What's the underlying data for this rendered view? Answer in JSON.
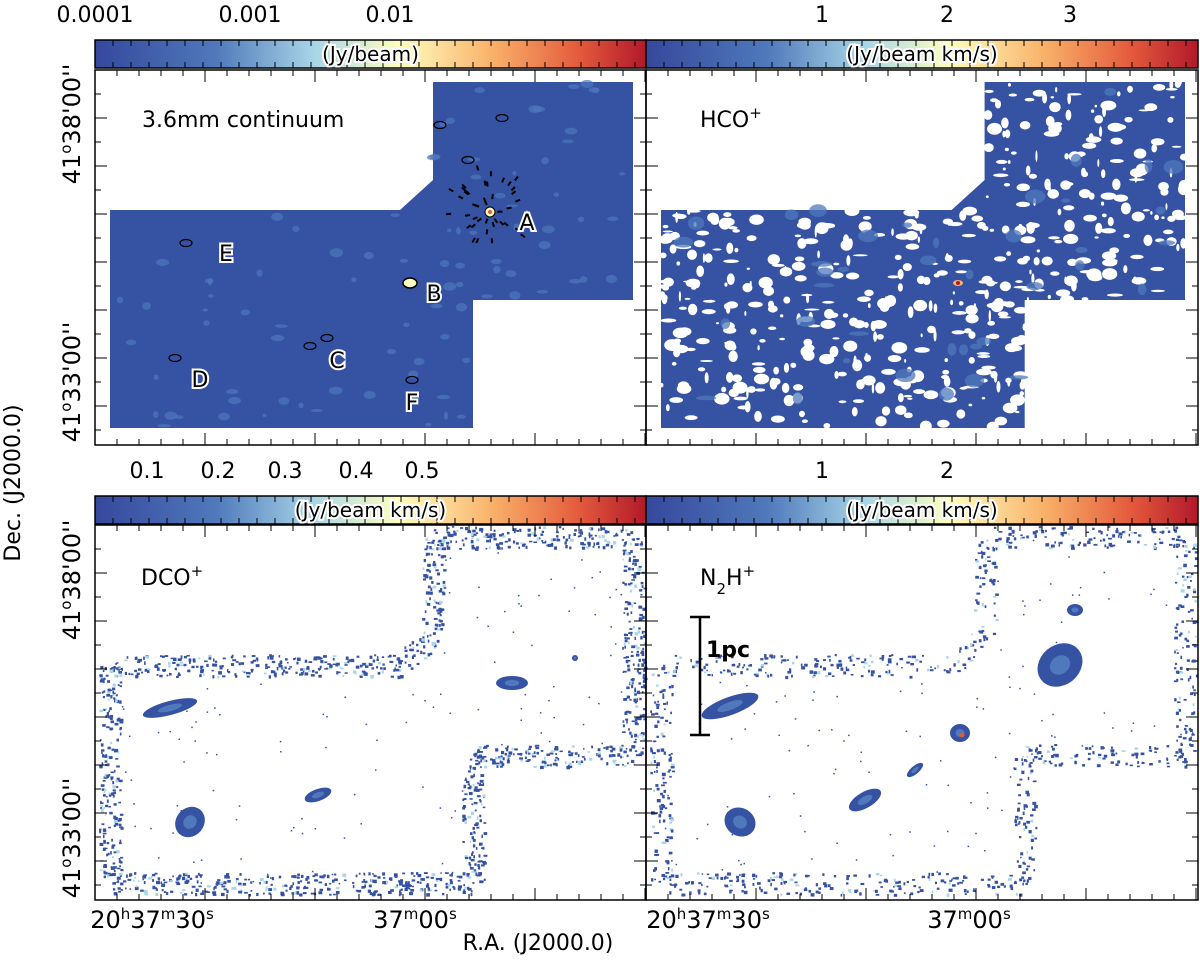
{
  "colors": {
    "map_blue": "#3552a3",
    "cbar_stops": [
      "#36489c",
      "#4f79bb",
      "#a9d7e8",
      "#fefebe",
      "#f9b26a",
      "#e35a3c",
      "#b2182b"
    ],
    "contour": "#000000",
    "text": "#000000"
  },
  "panels": [
    {
      "label": "3.6mm continuum",
      "cbar_title": "(Jy/beam)",
      "cbar_ticks": [
        "0.0001",
        "0.001",
        "0.01"
      ],
      "sources": [
        "A",
        "B",
        "C",
        "D",
        "E",
        "F"
      ]
    },
    {
      "label": "HCO",
      "label_sup": "+",
      "cbar_title": "(Jy/beam km/s)",
      "cbar_ticks": [
        "1",
        "2",
        "3"
      ]
    },
    {
      "label": "DCO",
      "label_sup": "+",
      "cbar_title": "(Jy/beam km/s)",
      "cbar_ticks": [
        "0.1",
        "0.2",
        "0.3",
        "0.4",
        "0.5"
      ]
    },
    {
      "label_pre": "N",
      "label_sub": "2",
      "label_mid": "H",
      "label_sup": "+",
      "cbar_title": "(Jy/beam km/s)",
      "cbar_ticks": [
        "1",
        "2"
      ],
      "scale_bar_label": "1pc"
    }
  ],
  "axes": {
    "ylabel": "Dec. (J2000.0)",
    "xlabel": "R.A. (J2000.0)",
    "dec_ticks": [
      {
        "base": "41",
        "sup": "o",
        "rest": "38'00''"
      },
      {
        "base": "41",
        "sup": "o",
        "rest": "33'00''"
      }
    ],
    "ra_ticks": [
      {
        "h": "20",
        "m": "37",
        "s": "30"
      },
      {
        "m": "37",
        "s": "00"
      }
    ]
  }
}
